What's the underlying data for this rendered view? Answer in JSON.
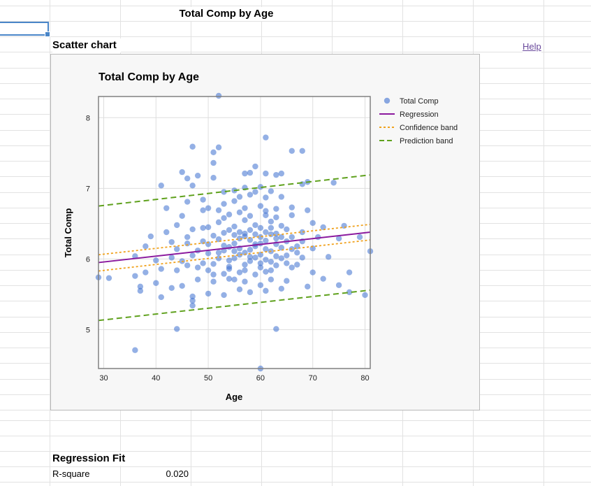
{
  "sheet": {
    "title": "Total Comp by Age",
    "chart_section_title": "Scatter chart",
    "help_label": "Help",
    "regression_section_title": "Regression Fit",
    "rsquare_label": "R-square",
    "rsquare_value": "0.020"
  },
  "colors": {
    "points": "#3d6fd0",
    "regression": "#8b1a9e",
    "confidence": "#f0a21e",
    "prediction": "#5fa11d",
    "plot_border": "#808080",
    "grid": "#dedede"
  },
  "chart_data": {
    "type": "scatter",
    "title": "Total Comp by Age",
    "xlabel": "Age",
    "ylabel": "Total Comp",
    "xlim": [
      29,
      81
    ],
    "ylim": [
      4.45,
      8.3
    ],
    "xticks": [
      30,
      40,
      50,
      60,
      70,
      80
    ],
    "yticks": [
      5,
      6,
      7,
      8
    ],
    "grid": true,
    "legend_position": "right",
    "legend": [
      {
        "label": "Total Comp",
        "kind": "marker"
      },
      {
        "label": "Regression",
        "kind": "solid"
      },
      {
        "label": "Confidence band",
        "kind": "dotted"
      },
      {
        "label": "Prediction band",
        "kind": "dashed"
      }
    ],
    "regression": {
      "x": [
        29,
        81
      ],
      "y": [
        5.95,
        6.38
      ]
    },
    "confidence_upper": {
      "x": [
        29,
        81
      ],
      "y": [
        6.06,
        6.49
      ]
    },
    "confidence_lower": {
      "x": [
        29,
        81
      ],
      "y": [
        5.83,
        6.27
      ]
    },
    "prediction_upper": {
      "x": [
        29,
        81
      ],
      "y": [
        6.75,
        7.19
      ]
    },
    "prediction_lower": {
      "x": [
        29,
        81
      ],
      "y": [
        5.13,
        5.56
      ]
    },
    "series": [
      {
        "name": "Total Comp",
        "points": [
          [
            52,
            8.31
          ],
          [
            61,
            7.72
          ],
          [
            47,
            7.59
          ],
          [
            52,
            7.58
          ],
          [
            66,
            7.53
          ],
          [
            68,
            7.53
          ],
          [
            51,
            7.51
          ],
          [
            51,
            7.36
          ],
          [
            59,
            7.31
          ],
          [
            45,
            7.23
          ],
          [
            57,
            7.21
          ],
          [
            58,
            7.22
          ],
          [
            46,
            7.14
          ],
          [
            48,
            7.18
          ],
          [
            51,
            7.15
          ],
          [
            61,
            7.21
          ],
          [
            63,
            7.19
          ],
          [
            64,
            7.21
          ],
          [
            41,
            7.04
          ],
          [
            47,
            7.04
          ],
          [
            68,
            7.06
          ],
          [
            69,
            7.09
          ],
          [
            74,
            7.08
          ],
          [
            60,
            7.02
          ],
          [
            42,
            6.72
          ],
          [
            45,
            6.61
          ],
          [
            49,
            6.69
          ],
          [
            50,
            6.72
          ],
          [
            53,
            6.78
          ],
          [
            55,
            6.82
          ],
          [
            60,
            6.75
          ],
          [
            63,
            6.71
          ],
          [
            66,
            6.73
          ],
          [
            69,
            6.69
          ],
          [
            70,
            6.51
          ],
          [
            66,
            6.62
          ],
          [
            44,
            6.48
          ],
          [
            72,
            6.45
          ],
          [
            76,
            6.47
          ],
          [
            39,
            6.32
          ],
          [
            42,
            6.38
          ],
          [
            47,
            6.42
          ],
          [
            50,
            6.45
          ],
          [
            55,
            6.46
          ],
          [
            60,
            6.44
          ],
          [
            65,
            6.42
          ],
          [
            68,
            6.38
          ],
          [
            71,
            6.31
          ],
          [
            75,
            6.29
          ],
          [
            79,
            6.31
          ],
          [
            38,
            6.18
          ],
          [
            44,
            6.14
          ],
          [
            46,
            6.22
          ],
          [
            49,
            6.25
          ],
          [
            52,
            6.28
          ],
          [
            57,
            6.32
          ],
          [
            61,
            6.26
          ],
          [
            63,
            6.21
          ],
          [
            67,
            6.18
          ],
          [
            70,
            6.15
          ],
          [
            81,
            6.11
          ],
          [
            36,
            6.04
          ],
          [
            40,
            5.98
          ],
          [
            43,
            6.02
          ],
          [
            47,
            6.05
          ],
          [
            50,
            6.08
          ],
          [
            53,
            6.12
          ],
          [
            56,
            6.15
          ],
          [
            59,
            6.18
          ],
          [
            62,
            6.11
          ],
          [
            65,
            6.05
          ],
          [
            68,
            6.02
          ],
          [
            73,
            6.03
          ],
          [
            29,
            5.74
          ],
          [
            31,
            5.73
          ],
          [
            36,
            5.76
          ],
          [
            38,
            5.81
          ],
          [
            41,
            5.86
          ],
          [
            44,
            5.84
          ],
          [
            46,
            5.91
          ],
          [
            48,
            5.88
          ],
          [
            51,
            5.93
          ],
          [
            54,
            5.89
          ],
          [
            57,
            5.92
          ],
          [
            60,
            5.94
          ],
          [
            63,
            5.91
          ],
          [
            66,
            5.88
          ],
          [
            70,
            5.81
          ],
          [
            72,
            5.72
          ],
          [
            77,
            5.81
          ],
          [
            37,
            5.61
          ],
          [
            40,
            5.66
          ],
          [
            43,
            5.59
          ],
          [
            45,
            5.62
          ],
          [
            48,
            5.71
          ],
          [
            51,
            5.68
          ],
          [
            54,
            5.72
          ],
          [
            57,
            5.68
          ],
          [
            60,
            5.63
          ],
          [
            62,
            5.71
          ],
          [
            65,
            5.69
          ],
          [
            69,
            5.61
          ],
          [
            75,
            5.63
          ],
          [
            37,
            5.55
          ],
          [
            41,
            5.46
          ],
          [
            47,
            5.47
          ],
          [
            50,
            5.51
          ],
          [
            53,
            5.49
          ],
          [
            56,
            5.57
          ],
          [
            58,
            5.53
          ],
          [
            61,
            5.55
          ],
          [
            64,
            5.58
          ],
          [
            77,
            5.53
          ],
          [
            80,
            5.49
          ],
          [
            47,
            5.34
          ],
          [
            47,
            5.41
          ],
          [
            44,
            5.01
          ],
          [
            63,
            5.01
          ],
          [
            36,
            4.71
          ],
          [
            60,
            4.45
          ],
          [
            53,
            6.58
          ],
          [
            54,
            6.41
          ],
          [
            55,
            6.22
          ],
          [
            56,
            6.38
          ],
          [
            57,
            6.55
          ],
          [
            58,
            6.03
          ],
          [
            59,
            6.48
          ],
          [
            61,
            6.62
          ],
          [
            62,
            6.35
          ],
          [
            64,
            6.47
          ],
          [
            55,
            6.01
          ],
          [
            56,
            5.81
          ],
          [
            58,
            6.27
          ],
          [
            59,
            5.78
          ],
          [
            60,
            6.31
          ],
          [
            61,
            5.82
          ],
          [
            62,
            6.44
          ],
          [
            57,
            6.09
          ],
          [
            58,
            5.97
          ],
          [
            59,
            6.21
          ],
          [
            60,
            6.06
          ],
          [
            61,
            6.38
          ],
          [
            62,
            5.96
          ],
          [
            63,
            6.29
          ],
          [
            64,
            6.01
          ],
          [
            65,
            6.25
          ],
          [
            52,
            6.01
          ],
          [
            53,
            5.79
          ],
          [
            54,
            6.17
          ],
          [
            55,
            5.71
          ],
          [
            56,
            6.29
          ],
          [
            57,
            5.84
          ],
          [
            58,
            6.41
          ],
          [
            59,
            6.02
          ],
          [
            60,
            5.88
          ],
          [
            61,
            6.14
          ],
          [
            62,
            5.84
          ],
          [
            63,
            6.36
          ],
          [
            64,
            6.16
          ],
          [
            66,
            6.31
          ],
          [
            67,
            6.09
          ],
          [
            51,
            6.33
          ],
          [
            52,
            6.52
          ],
          [
            53,
            6.19
          ],
          [
            54,
            5.98
          ],
          [
            55,
            6.34
          ],
          [
            56,
            6.06
          ],
          [
            57,
            6.36
          ],
          [
            58,
            6.13
          ],
          [
            59,
            6.35
          ],
          [
            60,
            6.22
          ],
          [
            61,
            5.99
          ],
          [
            62,
            6.53
          ],
          [
            63,
            6.04
          ],
          [
            64,
            6.31
          ],
          [
            48,
            6.12
          ],
          [
            49,
            5.94
          ],
          [
            50,
            6.21
          ],
          [
            51,
            5.78
          ],
          [
            52,
            6.09
          ],
          [
            53,
            6.37
          ],
          [
            54,
            5.86
          ],
          [
            55,
            6.11
          ],
          [
            45,
            5.97
          ],
          [
            46,
            6.31
          ],
          [
            49,
            6.44
          ],
          [
            50,
            5.84
          ],
          [
            65,
            5.94
          ],
          [
            66,
            6.14
          ],
          [
            67,
            5.92
          ],
          [
            68,
            6.25
          ],
          [
            55,
            6.97
          ],
          [
            56,
            6.88
          ],
          [
            57,
            7.01
          ],
          [
            58,
            6.91
          ],
          [
            59,
            6.95
          ],
          [
            62,
            6.96
          ],
          [
            54,
            6.63
          ],
          [
            56,
            6.66
          ],
          [
            58,
            6.61
          ],
          [
            61,
            6.87
          ],
          [
            63,
            6.59
          ],
          [
            53,
            6.95
          ],
          [
            49,
            6.84
          ],
          [
            46,
            6.81
          ],
          [
            43,
            6.24
          ],
          [
            64,
            6.88
          ],
          [
            61,
            6.68
          ],
          [
            57,
            6.72
          ],
          [
            52,
            6.69
          ]
        ]
      }
    ]
  }
}
